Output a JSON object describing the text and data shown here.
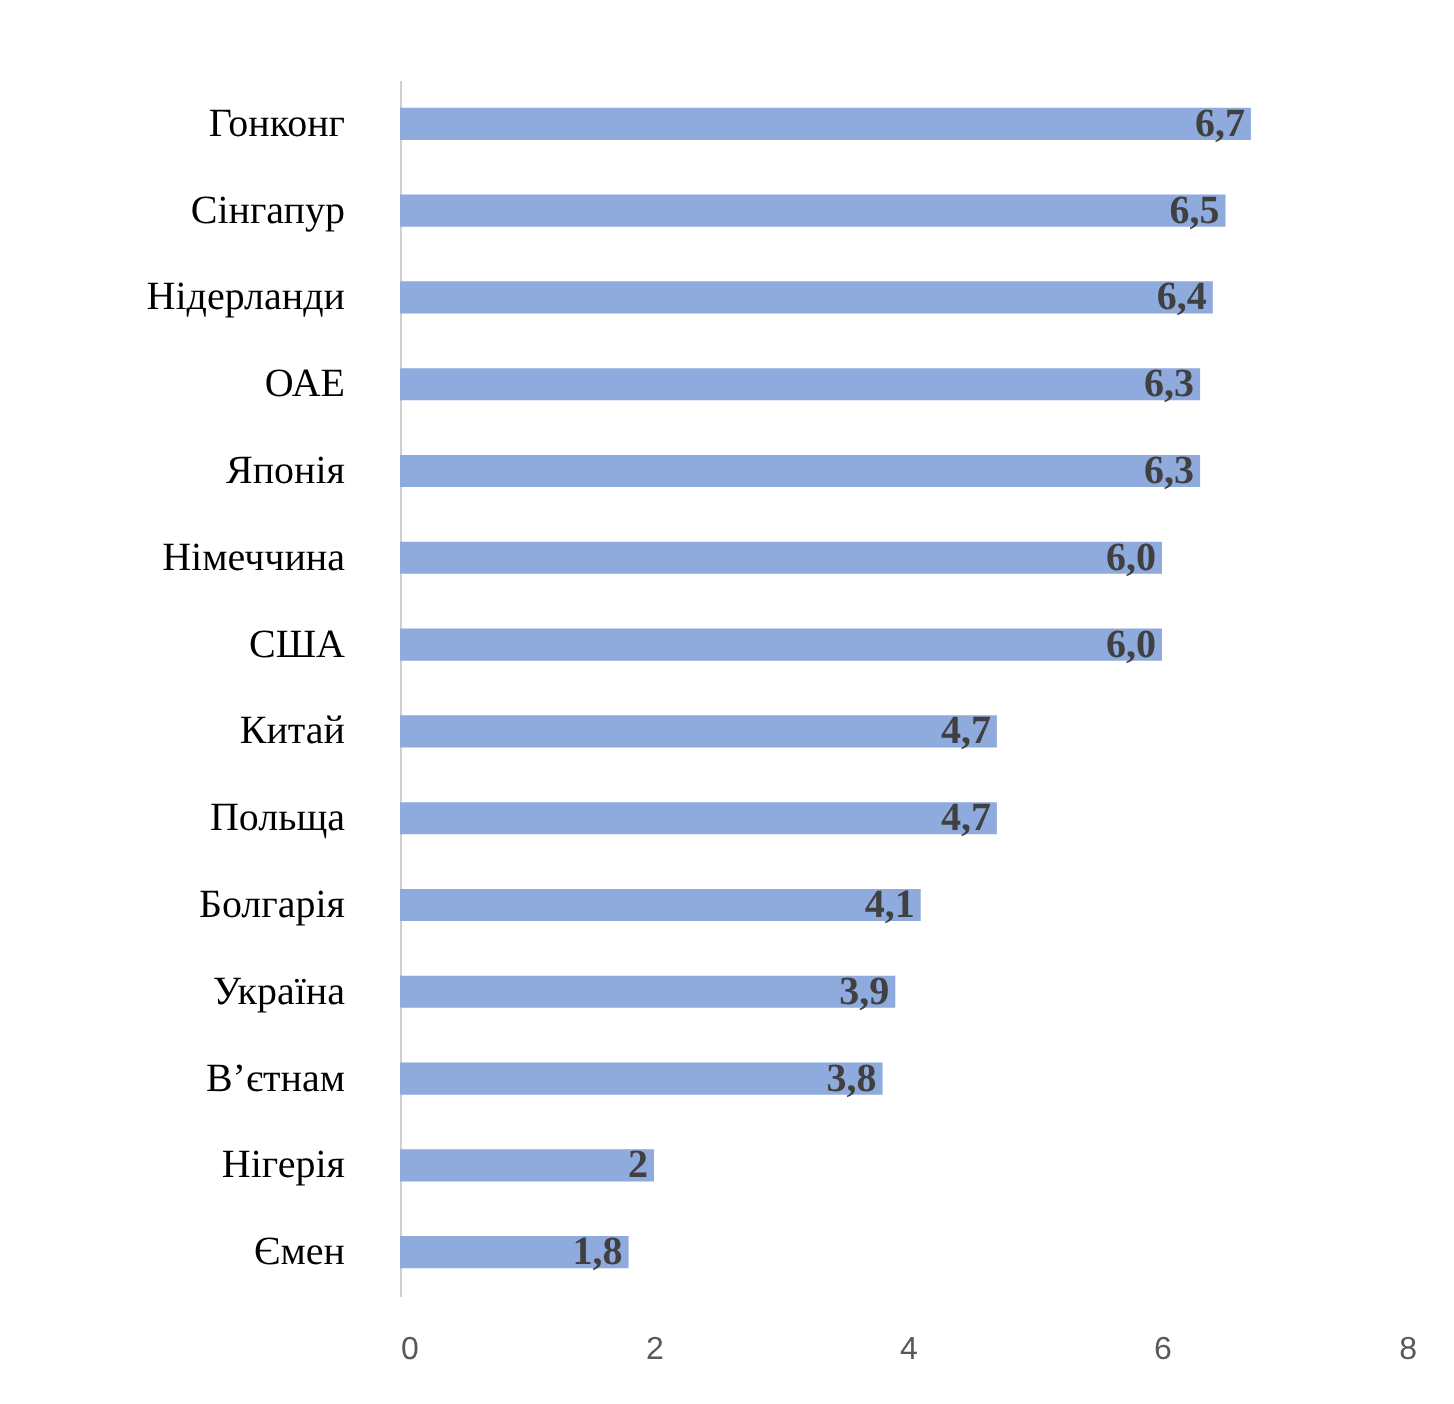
{
  "chart_data": {
    "type": "bar",
    "orientation": "horizontal",
    "categories": [
      "Гонконг",
      "Сінгапур",
      "Нідерланди",
      "ОАЕ",
      "Японія",
      "Німеччина",
      "США",
      "Китай",
      "Польща",
      "Болгарія",
      "Україна",
      "В’єтнам",
      "Нігерія",
      "Ємен"
    ],
    "values": [
      6.7,
      6.5,
      6.4,
      6.3,
      6.3,
      6.0,
      6.0,
      4.7,
      4.7,
      4.1,
      3.9,
      3.8,
      2,
      1.8
    ],
    "value_labels": [
      "6,7",
      "6,5",
      "6,4",
      "6,3",
      "6,3",
      "6,0",
      "6,0",
      "4,7",
      "4,7",
      "4,1",
      "3,9",
      "3,8",
      "2",
      "1,8"
    ],
    "color": "#8faadc",
    "xlim": [
      0,
      8
    ],
    "xticks": [
      0,
      2,
      4,
      6,
      8
    ],
    "grid": false
  }
}
